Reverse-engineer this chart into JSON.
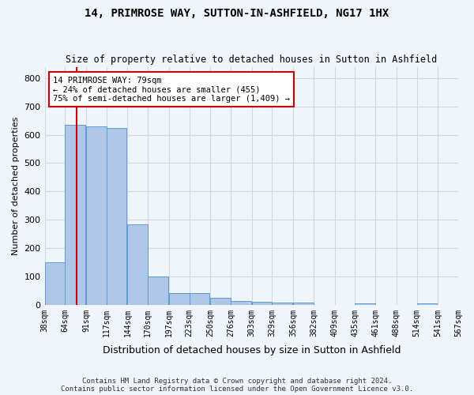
{
  "title": "14, PRIMROSE WAY, SUTTON-IN-ASHFIELD, NG17 1HX",
  "subtitle": "Size of property relative to detached houses in Sutton in Ashfield",
  "xlabel": "Distribution of detached houses by size in Sutton in Ashfield",
  "ylabel": "Number of detached properties",
  "footer_line1": "Contains HM Land Registry data © Crown copyright and database right 2024.",
  "footer_line2": "Contains public sector information licensed under the Open Government Licence v3.0.",
  "annotation_line1": "14 PRIMROSE WAY: 79sqm",
  "annotation_line2": "← 24% of detached houses are smaller (455)",
  "annotation_line3": "75% of semi-detached houses are larger (1,409) →",
  "property_size": 79,
  "bar_color": "#aec6e8",
  "bar_edge_color": "#5b9bd5",
  "vline_color": "#cc0000",
  "annotation_box_edge": "#cc0000",
  "annotation_box_face": "#ffffff",
  "grid_color": "#d0d8e8",
  "bin_edges": [
    38,
    64,
    91,
    117,
    144,
    170,
    197,
    223,
    250,
    276,
    303,
    329,
    356,
    382,
    409,
    435,
    461,
    488,
    514,
    541,
    567
  ],
  "bin_labels": [
    "38sqm",
    "64sqm",
    "91sqm",
    "117sqm",
    "144sqm",
    "170sqm",
    "197sqm",
    "223sqm",
    "250sqm",
    "276sqm",
    "303sqm",
    "329sqm",
    "356sqm",
    "382sqm",
    "409sqm",
    "435sqm",
    "461sqm",
    "488sqm",
    "514sqm",
    "541sqm",
    "567sqm"
  ],
  "counts": [
    150,
    635,
    630,
    625,
    285,
    100,
    42,
    42,
    25,
    12,
    11,
    7,
    7,
    0,
    0,
    4,
    0,
    0,
    4,
    0,
    0
  ],
  "ylim": [
    0,
    840
  ],
  "yticks": [
    0,
    100,
    200,
    300,
    400,
    500,
    600,
    700,
    800
  ],
  "background_color": "#f0f4fb"
}
